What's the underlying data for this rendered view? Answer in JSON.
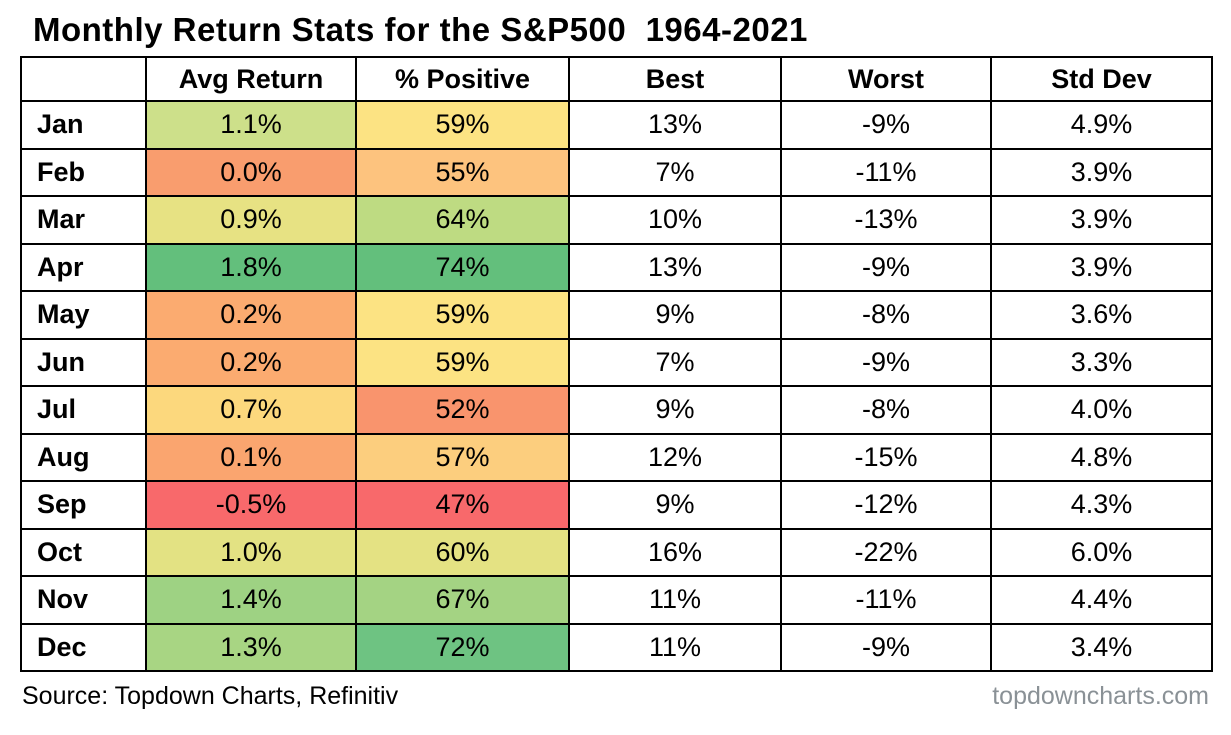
{
  "title": "Monthly Return Stats for the S&P500  1964-2021",
  "chart_data": {
    "type": "table",
    "title": "Monthly Return Stats for the S&P500 1964-2021",
    "columns": [
      "",
      "Avg Return",
      "% Positive",
      "Best",
      "Worst",
      "Std Dev"
    ],
    "heatmap_note": "Avg Return and % Positive columns use a red-yellow-green conditional color scale",
    "rows": [
      {
        "month": "Jan",
        "avg_return": "1.1%",
        "percent_positive": "59%",
        "best": "13%",
        "worst": "-9%",
        "std_dev": "4.9%",
        "avg_return_color": "#cde08a",
        "percent_positive_color": "#fce383"
      },
      {
        "month": "Feb",
        "avg_return": "0.0%",
        "percent_positive": "55%",
        "best": "7%",
        "worst": "-11%",
        "std_dev": "3.9%",
        "avg_return_color": "#f99d6e",
        "percent_positive_color": "#fdc37e"
      },
      {
        "month": "Mar",
        "avg_return": "0.9%",
        "percent_positive": "64%",
        "best": "10%",
        "worst": "-13%",
        "std_dev": "3.9%",
        "avg_return_color": "#e7e283",
        "percent_positive_color": "#bedb82"
      },
      {
        "month": "Apr",
        "avg_return": "1.8%",
        "percent_positive": "74%",
        "best": "13%",
        "worst": "-9%",
        "std_dev": "3.9%",
        "avg_return_color": "#63bf7c",
        "percent_positive_color": "#63bf7c"
      },
      {
        "month": "May",
        "avg_return": "0.2%",
        "percent_positive": "59%",
        "best": "9%",
        "worst": "-8%",
        "std_dev": "3.6%",
        "avg_return_color": "#fbab70",
        "percent_positive_color": "#fce383"
      },
      {
        "month": "Jun",
        "avg_return": "0.2%",
        "percent_positive": "59%",
        "best": "7%",
        "worst": "-9%",
        "std_dev": "3.3%",
        "avg_return_color": "#fbab70",
        "percent_positive_color": "#fce383"
      },
      {
        "month": "Jul",
        "avg_return": "0.7%",
        "percent_positive": "52%",
        "best": "9%",
        "worst": "-8%",
        "std_dev": "4.0%",
        "avg_return_color": "#fcd87d",
        "percent_positive_color": "#f9946d"
      },
      {
        "month": "Aug",
        "avg_return": "0.1%",
        "percent_positive": "57%",
        "best": "12%",
        "worst": "-15%",
        "std_dev": "4.8%",
        "avg_return_color": "#faa56f",
        "percent_positive_color": "#fcce7e"
      },
      {
        "month": "Sep",
        "avg_return": "-0.5%",
        "percent_positive": "47%",
        "best": "9%",
        "worst": "-12%",
        "std_dev": "4.3%",
        "avg_return_color": "#f8696b",
        "percent_positive_color": "#f8696b"
      },
      {
        "month": "Oct",
        "avg_return": "1.0%",
        "percent_positive": "60%",
        "best": "16%",
        "worst": "-22%",
        "std_dev": "6.0%",
        "avg_return_color": "#e3e283",
        "percent_positive_color": "#e4e283"
      },
      {
        "month": "Nov",
        "avg_return": "1.4%",
        "percent_positive": "67%",
        "best": "11%",
        "worst": "-11%",
        "std_dev": "4.4%",
        "avg_return_color": "#9ed283",
        "percent_positive_color": "#a4d383"
      },
      {
        "month": "Dec",
        "avg_return": "1.3%",
        "percent_positive": "72%",
        "best": "11%",
        "worst": "-9%",
        "std_dev": "3.4%",
        "avg_return_color": "#a8d583",
        "percent_positive_color": "#6ec382"
      }
    ]
  },
  "footer": {
    "source": "Source: Topdown Charts, Refinitiv",
    "website": "topdowncharts.com",
    "website_color": "#8a9196"
  }
}
